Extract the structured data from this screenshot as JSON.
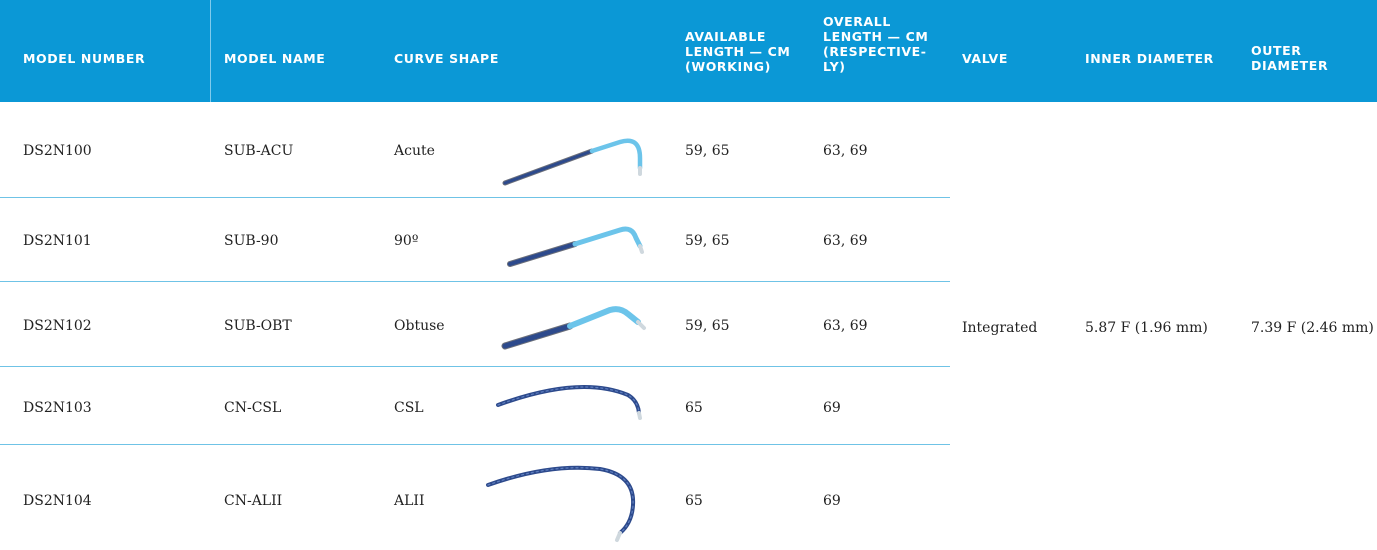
{
  "header": {
    "model_number": "MODEL NUMBER",
    "model_name": "MODEL NAME",
    "curve_shape": "CURVE SHAPE",
    "available_length": [
      "AVAILABLE",
      "LENGTH — CM",
      "(WORKING)"
    ],
    "overall_length": [
      "OVERALL",
      "LENGTH — CM",
      "(RESPECTIVE-",
      "LY)"
    ],
    "valve": "VALVE",
    "inner_diameter": "INNER DIAMETER",
    "outer_diameter": [
      "OUTER",
      "DIAMETER"
    ]
  },
  "rows": [
    {
      "model_number": "DS2N100",
      "model_name": "SUB-ACU",
      "curve_shape": "Acute",
      "available_length": "59, 65",
      "overall_length": "63, 69",
      "image": "acute-curve-catheter"
    },
    {
      "model_number": "DS2N101",
      "model_name": "SUB-90",
      "curve_shape": "90º",
      "available_length": "59, 65",
      "overall_length": "63, 69",
      "image": "90-degree-curve-catheter"
    },
    {
      "model_number": "DS2N102",
      "model_name": "SUB-OBT",
      "curve_shape": "Obtuse",
      "available_length": "59, 65",
      "overall_length": "63, 69",
      "image": "obtuse-curve-catheter"
    },
    {
      "model_number": "DS2N103",
      "model_name": "CN-CSL",
      "curve_shape": "CSL",
      "available_length": "65",
      "overall_length": "69",
      "image": "csl-curve-catheter"
    },
    {
      "model_number": "DS2N104",
      "model_name": "CN-ALII",
      "curve_shape": "ALII",
      "available_length": "65",
      "overall_length": "69",
      "image": "alii-curve-catheter"
    }
  ],
  "shared": {
    "valve": "Integrated",
    "inner_diameter": "5.87 F (1.96 mm)",
    "outer_diameter": "7.39 F (2.46 mm)"
  },
  "colors": {
    "header_bg": "#0b98d6",
    "row_divider": "#6fc3e6",
    "catheter_dark": "#2d4a8c",
    "catheter_light": "#6cc4ea"
  }
}
